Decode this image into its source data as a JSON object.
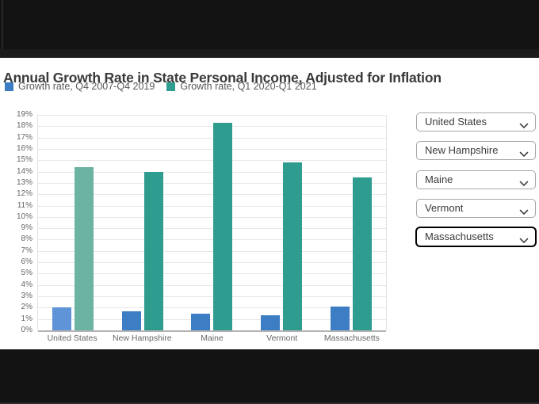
{
  "page": {
    "title": "Annual Growth Rate in State Personal Income, Adjusted for Inflation"
  },
  "chart_data": {
    "type": "bar",
    "title": "Annual Growth Rate in State Personal Income, Adjusted for Inflation",
    "categories": [
      "United States",
      "New Hampshire",
      "Maine",
      "Vermont",
      "Massachusetts"
    ],
    "series": [
      {
        "name": "Growth rate, Q4 2007-Q4 2019",
        "color": "#3d7dc4",
        "highlight_color": "#6094d8",
        "values": [
          2.0,
          1.7,
          1.5,
          1.3,
          2.1
        ]
      },
      {
        "name": "Growth rate, Q1 2020-Q1 2021",
        "color": "#2e9c8e",
        "highlight_color": "#6cb3a4",
        "values": [
          14.4,
          14.0,
          18.3,
          14.8,
          13.5
        ]
      }
    ],
    "highlight_index": 0,
    "xlabel": "",
    "ylabel": "",
    "ylim": [
      0,
      19
    ],
    "grid": true,
    "legend_position": "top",
    "y_axis": {
      "min": 0,
      "max": 19,
      "step": 1,
      "tick_suffix": "%",
      "ticks": [
        "0%",
        "1%",
        "2%",
        "3%",
        "4%",
        "5%",
        "6%",
        "7%",
        "8%",
        "9%",
        "10%",
        "11%",
        "12%",
        "13%",
        "14%",
        "15%",
        "16%",
        "17%",
        "18%",
        "19%"
      ]
    }
  },
  "sidebar": {
    "dropdowns": [
      {
        "value": "United States",
        "focused": false
      },
      {
        "value": "New Hampshire",
        "focused": false
      },
      {
        "value": "Maine",
        "focused": false
      },
      {
        "value": "Vermont",
        "focused": false
      },
      {
        "value": "Massachusetts",
        "focused": true
      }
    ]
  }
}
